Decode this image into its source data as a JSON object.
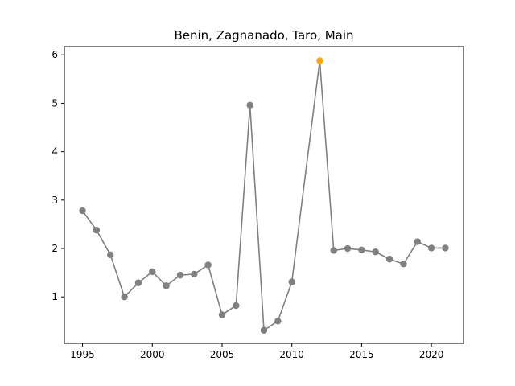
{
  "chart_data": {
    "type": "line",
    "title": "Benin, Zagnanado, Taro, Main",
    "xlabel": "",
    "ylabel": "",
    "xlim": [
      1993.7,
      2022.3
    ],
    "ylim": [
      0.04,
      6.17
    ],
    "x_ticks": [
      1995,
      2000,
      2005,
      2010,
      2015,
      2020
    ],
    "y_ticks": [
      1,
      2,
      3,
      4,
      5,
      6
    ],
    "grid": false,
    "series": [
      {
        "color": "#808080",
        "highlight_color": "#FFA500",
        "highlight_year": 2012,
        "points": [
          {
            "x": 1995,
            "y": 2.78
          },
          {
            "x": 1996,
            "y": 2.38
          },
          {
            "x": 1997,
            "y": 1.87
          },
          {
            "x": 1998,
            "y": 1.0
          },
          {
            "x": 1999,
            "y": 1.29
          },
          {
            "x": 2000,
            "y": 1.52
          },
          {
            "x": 2001,
            "y": 1.23
          },
          {
            "x": 2002,
            "y": 1.45
          },
          {
            "x": 2003,
            "y": 1.47
          },
          {
            "x": 2004,
            "y": 1.66
          },
          {
            "x": 2005,
            "y": 0.63
          },
          {
            "x": 2006,
            "y": 0.82
          },
          {
            "x": 2007,
            "y": 4.96
          },
          {
            "x": 2008,
            "y": 0.31
          },
          {
            "x": 2009,
            "y": 0.5
          },
          {
            "x": 2010,
            "y": 1.31
          },
          {
            "x": 2012,
            "y": 5.88
          },
          {
            "x": 2013,
            "y": 1.96
          },
          {
            "x": 2014,
            "y": 2.0
          },
          {
            "x": 2015,
            "y": 1.97
          },
          {
            "x": 2016,
            "y": 1.93
          },
          {
            "x": 2017,
            "y": 1.78
          },
          {
            "x": 2018,
            "y": 1.68
          },
          {
            "x": 2019,
            "y": 2.14
          },
          {
            "x": 2020,
            "y": 2.01
          },
          {
            "x": 2021,
            "y": 2.01
          }
        ]
      }
    ]
  }
}
